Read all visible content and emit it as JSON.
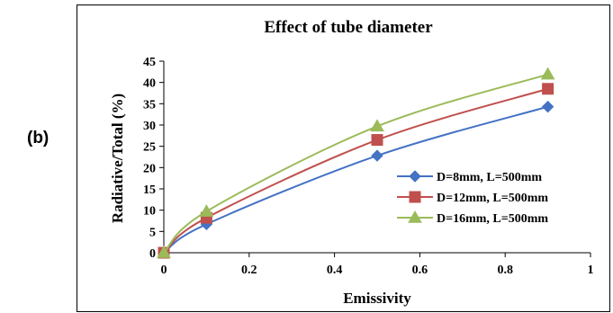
{
  "panel_label": "(b)",
  "chart_data": {
    "type": "line",
    "title": "Effect of tube diameter",
    "xlabel": "Emissivity",
    "ylabel": "Radiative/Total (%)",
    "xlim": [
      0,
      1
    ],
    "ylim": [
      0,
      45
    ],
    "xticks": [
      0,
      0.2,
      0.4,
      0.6,
      0.8,
      1
    ],
    "xtick_labels": [
      "0",
      "0.2",
      "0.4",
      "0.6",
      "0.8",
      "1"
    ],
    "yticks": [
      0,
      5,
      10,
      15,
      20,
      25,
      30,
      35,
      40,
      45
    ],
    "ytick_labels": [
      "0",
      "5",
      "10",
      "15",
      "20",
      "25",
      "30",
      "35",
      "40",
      "45"
    ],
    "grid": false,
    "legend_position": "lower-right",
    "series": [
      {
        "name": "D=8mm, L=500mm",
        "color": "#4472C4",
        "marker": "diamond",
        "x": [
          0,
          0.1,
          0.5,
          0.9
        ],
        "y": [
          0,
          6.7,
          22.8,
          34.3
        ]
      },
      {
        "name": "D=12mm, L=500mm",
        "color": "#C0504D",
        "marker": "square",
        "x": [
          0,
          0.1,
          0.5,
          0.9
        ],
        "y": [
          0,
          8.2,
          26.5,
          38.5
        ]
      },
      {
        "name": "D=16mm, L=500mm",
        "color": "#9BBB59",
        "marker": "triangle",
        "x": [
          0,
          0.1,
          0.5,
          0.9
        ],
        "y": [
          0,
          9.7,
          29.7,
          41.9
        ]
      }
    ]
  }
}
